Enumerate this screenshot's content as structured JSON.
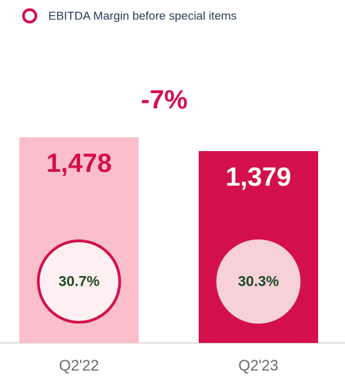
{
  "chart_data": {
    "type": "bar",
    "annotation": "-7%",
    "categories": [
      "Q2'22",
      "Q2'23"
    ],
    "values": [
      1478,
      1379
    ],
    "value_labels": [
      "1,478",
      "1,379"
    ],
    "colors": [
      "#fbbfcb",
      "#d3104c"
    ],
    "label_colors": [
      "#d3104c",
      "#ffffff"
    ],
    "margin": {
      "name": "EBITDA Margin before special items",
      "values": [
        30.7,
        30.3
      ],
      "value_labels": [
        "30.7%",
        "30.3%"
      ],
      "color": "#d3104c",
      "fills": [
        "#fdf0f3",
        "#f6d1da"
      ],
      "outlined": [
        true,
        false
      ]
    }
  }
}
